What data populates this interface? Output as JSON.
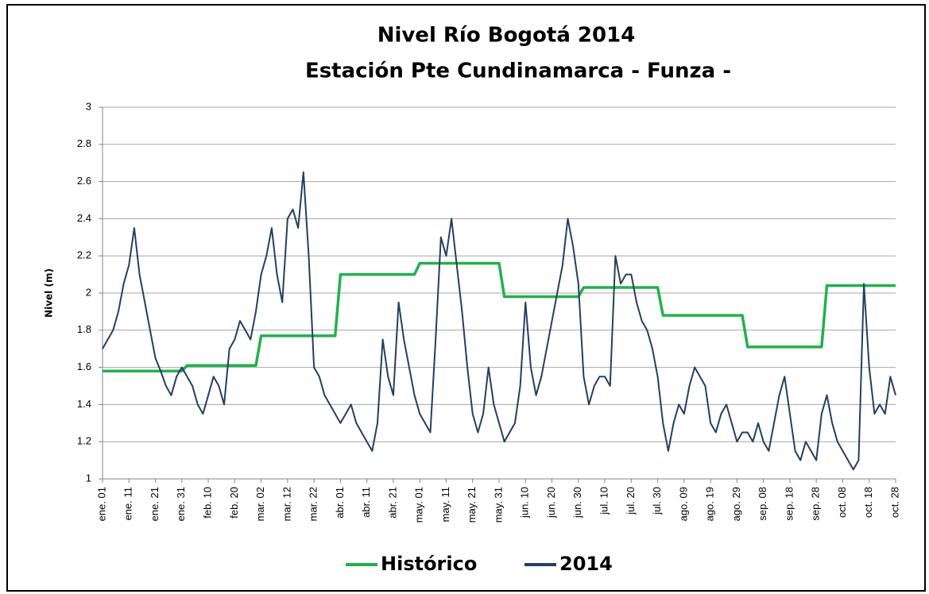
{
  "chart_data": {
    "type": "line",
    "title": "Nivel Río Bogotá 2014",
    "subtitle": "Estación Pte  Cundinamarca - Funza -",
    "y_label": "Nivel (m)",
    "categories": [
      "ene. 01",
      null,
      null,
      null,
      null,
      "ene. 11",
      null,
      null,
      null,
      null,
      "ene. 21",
      null,
      null,
      null,
      null,
      "ene. 31",
      null,
      null,
      null,
      null,
      "feb. 10",
      null,
      null,
      null,
      null,
      "feb. 20",
      null,
      null,
      null,
      null,
      "mar. 02",
      null,
      null,
      null,
      null,
      "mar. 12",
      null,
      null,
      null,
      null,
      "mar. 22",
      null,
      null,
      null,
      null,
      "abr. 01",
      null,
      null,
      null,
      null,
      "abr. 11",
      null,
      null,
      null,
      null,
      "abr. 21",
      null,
      null,
      null,
      null,
      "may. 01",
      null,
      null,
      null,
      null,
      "may. 11",
      null,
      null,
      null,
      null,
      "may. 21",
      null,
      null,
      null,
      null,
      "may. 31",
      null,
      null,
      null,
      null,
      "jun. 10",
      null,
      null,
      null,
      null,
      "jun. 20",
      null,
      null,
      null,
      null,
      "jun. 30",
      null,
      null,
      null,
      null,
      "jul. 10",
      null,
      null,
      null,
      null,
      "jul. 20",
      null,
      null,
      null,
      null,
      "jul. 30",
      null,
      null,
      null,
      null,
      "ago. 09",
      null,
      null,
      null,
      null,
      "ago. 19",
      null,
      null,
      null,
      null,
      "ago. 29",
      null,
      null,
      null,
      null,
      "sep. 08",
      null,
      null,
      null,
      null,
      "sep. 18",
      null,
      null,
      null,
      null,
      "sep. 28",
      null,
      null,
      null,
      null,
      "oct. 08",
      null,
      null,
      null,
      null,
      "oct. 18",
      null,
      null,
      null,
      null,
      "oct. 28"
    ],
    "series": [
      {
        "name": "Histórico",
        "color": "#22b14c",
        "values": [
          1.58,
          1.58,
          1.58,
          1.58,
          1.58,
          1.58,
          1.58,
          1.58,
          1.58,
          1.58,
          1.58,
          1.58,
          1.58,
          1.58,
          1.58,
          1.58,
          1.61,
          1.61,
          1.61,
          1.61,
          1.61,
          1.61,
          1.61,
          1.61,
          1.61,
          1.61,
          1.61,
          1.61,
          1.61,
          1.61,
          1.77,
          1.77,
          1.77,
          1.77,
          1.77,
          1.77,
          1.77,
          1.77,
          1.77,
          1.77,
          1.77,
          1.77,
          1.77,
          1.77,
          1.77,
          2.1,
          2.1,
          2.1,
          2.1,
          2.1,
          2.1,
          2.1,
          2.1,
          2.1,
          2.1,
          2.1,
          2.1,
          2.1,
          2.1,
          2.1,
          2.16,
          2.16,
          2.16,
          2.16,
          2.16,
          2.16,
          2.16,
          2.16,
          2.16,
          2.16,
          2.16,
          2.16,
          2.16,
          2.16,
          2.16,
          2.16,
          1.98,
          1.98,
          1.98,
          1.98,
          1.98,
          1.98,
          1.98,
          1.98,
          1.98,
          1.98,
          1.98,
          1.98,
          1.98,
          1.98,
          1.98,
          2.03,
          2.03,
          2.03,
          2.03,
          2.03,
          2.03,
          2.03,
          2.03,
          2.03,
          2.03,
          2.03,
          2.03,
          2.03,
          2.03,
          2.03,
          1.88,
          1.88,
          1.88,
          1.88,
          1.88,
          1.88,
          1.88,
          1.88,
          1.88,
          1.88,
          1.88,
          1.88,
          1.88,
          1.88,
          1.88,
          1.88,
          1.71,
          1.71,
          1.71,
          1.71,
          1.71,
          1.71,
          1.71,
          1.71,
          1.71,
          1.71,
          1.71,
          1.71,
          1.71,
          1.71,
          1.71,
          2.04,
          2.04,
          2.04,
          2.04,
          2.04,
          2.04,
          2.04,
          2.04,
          2.04,
          2.04,
          2.04,
          2.04,
          2.04,
          2.04
        ]
      },
      {
        "name": "2014",
        "color": "#243f60",
        "values": [
          1.7,
          1.75,
          1.8,
          1.9,
          2.05,
          2.15,
          2.35,
          2.1,
          1.95,
          1.8,
          1.65,
          1.58,
          1.5,
          1.45,
          1.55,
          1.6,
          1.55,
          1.5,
          1.4,
          1.35,
          1.45,
          1.55,
          1.5,
          1.4,
          1.7,
          1.75,
          1.85,
          1.8,
          1.75,
          1.9,
          2.1,
          2.2,
          2.35,
          2.1,
          1.95,
          2.4,
          2.45,
          2.35,
          2.65,
          2.2,
          1.6,
          1.55,
          1.45,
          1.4,
          1.35,
          1.3,
          1.35,
          1.4,
          1.3,
          1.25,
          1.2,
          1.15,
          1.3,
          1.75,
          1.55,
          1.45,
          1.95,
          1.75,
          1.6,
          1.45,
          1.35,
          1.3,
          1.25,
          1.75,
          2.3,
          2.2,
          2.4,
          2.15,
          1.9,
          1.6,
          1.35,
          1.25,
          1.35,
          1.6,
          1.4,
          1.3,
          1.2,
          1.25,
          1.3,
          1.5,
          1.95,
          1.6,
          1.45,
          1.55,
          1.7,
          1.85,
          2.0,
          2.15,
          2.4,
          2.25,
          2.05,
          1.55,
          1.4,
          1.5,
          1.55,
          1.55,
          1.5,
          2.2,
          2.05,
          2.1,
          2.1,
          1.95,
          1.85,
          1.8,
          1.7,
          1.55,
          1.3,
          1.15,
          1.3,
          1.4,
          1.35,
          1.5,
          1.6,
          1.55,
          1.5,
          1.3,
          1.25,
          1.35,
          1.4,
          1.3,
          1.2,
          1.25,
          1.25,
          1.2,
          1.3,
          1.2,
          1.15,
          1.3,
          1.45,
          1.55,
          1.35,
          1.15,
          1.1,
          1.2,
          1.15,
          1.1,
          1.35,
          1.45,
          1.3,
          1.2,
          1.15,
          1.1,
          1.05,
          1.1,
          2.05,
          1.6,
          1.35,
          1.4,
          1.35,
          1.55,
          1.45
        ]
      }
    ],
    "ylim": [
      1,
      3
    ],
    "yticks": [
      1,
      1.2,
      1.4,
      1.6,
      1.8,
      2,
      2.2,
      2.4,
      2.6,
      2.8,
      3
    ],
    "grid": true,
    "legend": "bottom"
  }
}
